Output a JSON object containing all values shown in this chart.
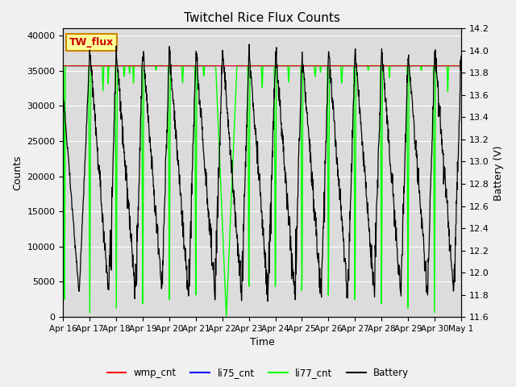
{
  "title": "Twitchel Rice Flux Counts",
  "xlabel": "Time",
  "ylabel_left": "Counts",
  "ylabel_right": "Battery (V)",
  "annotation_text": "TW_flux",
  "annotation_box_color": "#ffff99",
  "annotation_box_edge": "#cc8800",
  "annotation_text_color": "#cc0000",
  "ylim_left": [
    0,
    41000
  ],
  "ylim_right": [
    11.6,
    14.2
  ],
  "bg_inner": "#dcdcdc",
  "bg_outer": "#f0f0f0",
  "xtick_labels": [
    "Apr 16",
    "Apr 17",
    "Apr 18",
    "Apr 19",
    "Apr 20",
    "Apr 21",
    "Apr 22",
    "Apr 23",
    "Apr 24",
    "Apr 25",
    "Apr 26",
    "Apr 27",
    "Apr 28",
    "Apr 29",
    "Apr 30",
    "May 1"
  ],
  "yticks_left": [
    0,
    5000,
    10000,
    15000,
    20000,
    25000,
    30000,
    35000,
    40000
  ],
  "yticks_right": [
    11.6,
    11.8,
    12.0,
    12.2,
    12.4,
    12.6,
    12.8,
    13.0,
    13.2,
    13.4,
    13.6,
    13.8,
    14.0,
    14.2
  ],
  "flat_level": 35700,
  "battery_high": 14.0,
  "battery_low": 11.8,
  "legend_items": [
    {
      "label": "wmp_cnt",
      "color": "red"
    },
    {
      "label": "li75_cnt",
      "color": "blue"
    },
    {
      "label": "li77_cnt",
      "color": "lime"
    },
    {
      "label": "Battery",
      "color": "black"
    }
  ]
}
